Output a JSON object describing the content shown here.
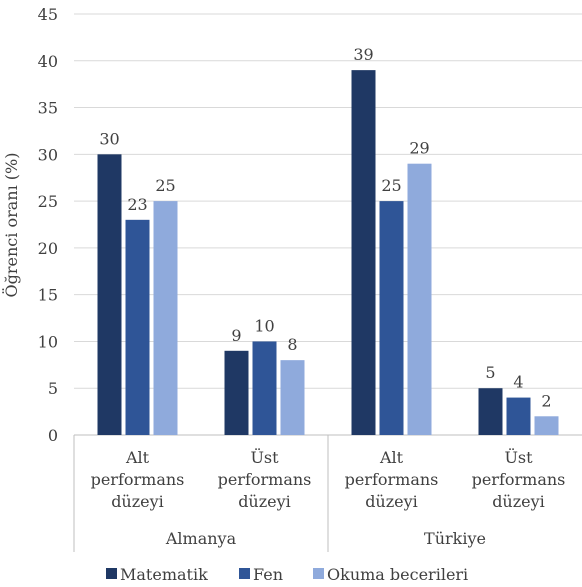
{
  "chart_data": {
    "type": "bar",
    "title": "",
    "xlabel": "",
    "ylabel": "Öğrenci oranı (%)",
    "ylim": [
      0,
      45
    ],
    "yticks": [
      "0",
      "5",
      "10",
      "15",
      "20",
      "25",
      "30",
      "35",
      "40",
      "45"
    ],
    "grid": true,
    "legend_position": "bottom",
    "groups": [
      {
        "label": "Almanya",
        "categories": [
          [
            "Alt",
            "performans",
            "düzeyi"
          ],
          [
            "Üst",
            "performans",
            "düzeyi"
          ]
        ]
      },
      {
        "label": "Türkiye",
        "categories": [
          [
            "Alt",
            "performans",
            "düzeyi"
          ],
          [
            "Üst",
            "performans",
            "düzeyi"
          ]
        ]
      }
    ],
    "series": [
      {
        "name": "Matematik",
        "color": "#1f3864",
        "values": [
          30,
          9,
          39,
          5
        ]
      },
      {
        "name": "Fen",
        "color": "#2f5597",
        "values": [
          23,
          10,
          25,
          4
        ]
      },
      {
        "name": "Okuma becerileri",
        "color": "#8faadc",
        "values": [
          25,
          8,
          29,
          2
        ]
      }
    ]
  }
}
